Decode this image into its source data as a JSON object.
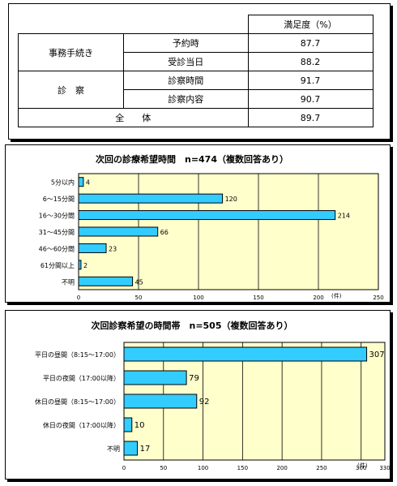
{
  "satisfaction_table": {
    "header": "満足度（%）",
    "rows": [
      {
        "group": "事務手続き",
        "item": "予約時",
        "value": "87.7"
      },
      {
        "group": "事務手続き",
        "item": "受診当日",
        "value": "88.2"
      },
      {
        "group": "診　察",
        "item": "診察時間",
        "value": "91.7"
      },
      {
        "group": "診　察",
        "item": "診察内容",
        "value": "90.7"
      }
    ],
    "total_label": "全　　体",
    "total_value": "89.7"
  },
  "chart_data": [
    {
      "type": "bar",
      "orientation": "horizontal",
      "title": "次回の診療希望時間　n=474（複数回答あり）",
      "unit_label": "(件)",
      "categories": [
        "5分以内",
        "6～15分間",
        "16～30分間",
        "31～45分間",
        "46～60分間",
        "61分間以上",
        "不明"
      ],
      "values": [
        4,
        120,
        214,
        66,
        23,
        2,
        45
      ],
      "xlim": [
        0,
        250
      ],
      "xticks": [
        0,
        50,
        100,
        150,
        200,
        250
      ],
      "grid": true,
      "colors": {
        "bar": "#33ccff",
        "plot_bg": "#ffffcc"
      }
    },
    {
      "type": "bar",
      "orientation": "horizontal",
      "title": "次回診察希望の時間帯　n=505（複数回答あり）",
      "unit_label": "(件)",
      "categories": [
        "平日の昼間（8:15～17:00）",
        "平日の夜間（17:00以降）",
        "休日の昼間（8:15～17:00）",
        "休日の夜間（17:00以降）",
        "不明"
      ],
      "values": [
        307,
        79,
        92,
        10,
        17
      ],
      "xlim": [
        0,
        330
      ],
      "xticks": [
        0,
        50,
        100,
        150,
        200,
        250,
        300,
        330
      ],
      "grid": true,
      "colors": {
        "bar": "#33ccff",
        "plot_bg": "#ffffcc"
      }
    }
  ]
}
